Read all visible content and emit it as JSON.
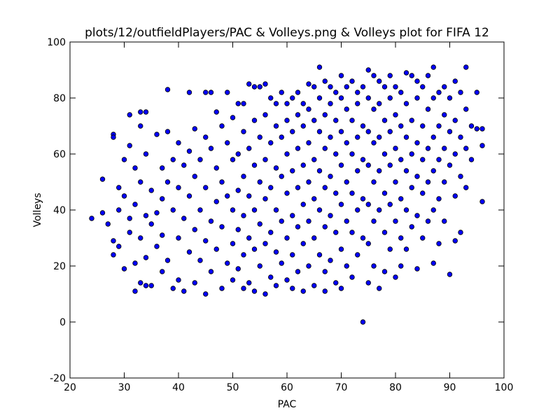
{
  "chart_data": {
    "type": "scatter",
    "title": "plots/12/outfieldPlayers/PAC & Volleys.png & Volleys plot for FIFA 12",
    "xlabel": "PAC",
    "ylabel": "Volleys",
    "color": "#0000ff",
    "xlim": [
      20,
      100
    ],
    "ylim": [
      -20,
      100
    ],
    "xticks": [
      20,
      30,
      40,
      50,
      60,
      70,
      80,
      90,
      100
    ],
    "yticks": [
      -20,
      0,
      20,
      40,
      60,
      80,
      100
    ],
    "grid": false,
    "x": [
      24,
      26,
      26,
      27,
      28,
      28,
      28,
      28,
      29,
      29,
      29,
      30,
      30,
      30,
      31,
      31,
      31,
      31,
      32,
      32,
      32,
      32,
      33,
      33,
      33,
      33,
      33,
      34,
      34,
      34,
      34,
      34,
      35,
      35,
      35,
      36,
      36,
      36,
      37,
      37,
      37,
      37,
      38,
      38,
      38,
      38,
      39,
      39,
      39,
      40,
      40,
      40,
      40,
      41,
      41,
      41,
      42,
      42,
      42,
      42,
      43,
      43,
      43,
      43,
      44,
      44,
      44,
      45,
      45,
      45,
      45,
      45,
      46,
      46,
      46,
      46,
      47,
      47,
      47,
      47,
      48,
      48,
      48,
      48,
      49,
      49,
      49,
      49,
      50,
      50,
      50,
      50,
      50,
      51,
      51,
      51,
      51,
      51,
      52,
      52,
      52,
      52,
      52,
      52,
      53,
      53,
      53,
      53,
      53,
      54,
      54,
      54,
      54,
      54,
      54,
      55,
      55,
      55,
      55,
      55,
      56,
      56,
      56,
      56,
      56,
      56,
      57,
      57,
      57,
      57,
      57,
      58,
      58,
      58,
      58,
      58,
      58,
      59,
      59,
      59,
      59,
      59,
      60,
      60,
      60,
      60,
      60,
      60,
      61,
      61,
      61,
      61,
      61,
      61,
      62,
      62,
      62,
      62,
      62,
      62,
      63,
      63,
      63,
      63,
      63,
      63,
      64,
      64,
      64,
      64,
      64,
      64,
      65,
      65,
      65,
      65,
      65,
      65,
      66,
      66,
      66,
      66,
      66,
      66,
      67,
      67,
      67,
      67,
      67,
      67,
      67,
      68,
      68,
      68,
      68,
      68,
      68,
      69,
      69,
      69,
      69,
      69,
      69,
      70,
      70,
      70,
      70,
      70,
      70,
      70,
      71,
      71,
      71,
      71,
      71,
      71,
      72,
      72,
      72,
      72,
      72,
      72,
      73,
      73,
      73,
      73,
      73,
      73,
      74,
      74,
      74,
      74,
      74,
      74,
      75,
      75,
      75,
      75,
      75,
      75,
      75,
      76,
      76,
      76,
      76,
      76,
      76,
      77,
      77,
      77,
      77,
      77,
      77,
      78,
      78,
      78,
      78,
      78,
      78,
      79,
      79,
      79,
      79,
      79,
      79,
      80,
      80,
      80,
      80,
      80,
      80,
      81,
      81,
      81,
      81,
      81,
      81,
      82,
      82,
      82,
      82,
      82,
      82,
      83,
      83,
      83,
      83,
      83,
      84,
      84,
      84,
      84,
      84,
      84,
      85,
      85,
      85,
      85,
      85,
      86,
      86,
      86,
      86,
      86,
      87,
      87,
      87,
      87,
      87,
      87,
      88,
      88,
      88,
      88,
      88,
      89,
      89,
      89,
      89,
      89,
      90,
      90,
      90,
      90,
      91,
      91,
      91,
      91,
      91,
      92,
      92,
      92,
      92,
      93,
      93,
      93,
      93,
      94,
      94,
      95,
      95,
      96,
      96,
      96
    ],
    "values": [
      37,
      51,
      39,
      35,
      67,
      66,
      29,
      24,
      48,
      40,
      27,
      58,
      45,
      19,
      74,
      63,
      37,
      32,
      55,
      42,
      11,
      21,
      75,
      70,
      50,
      30,
      14,
      75,
      60,
      38,
      23,
      13,
      47,
      35,
      13,
      67,
      39,
      27,
      55,
      44,
      31,
      18,
      83,
      68,
      50,
      22,
      58,
      40,
      12,
      64,
      48,
      30,
      15,
      56,
      37,
      11,
      82,
      61,
      45,
      25,
      69,
      52,
      33,
      14,
      58,
      40,
      22,
      82,
      66,
      48,
      29,
      10,
      82,
      62,
      36,
      18,
      75,
      55,
      43,
      26,
      70,
      50,
      34,
      12,
      82,
      64,
      45,
      21,
      73,
      58,
      40,
      28,
      15,
      78,
      60,
      47,
      33,
      19,
      78,
      68,
      52,
      38,
      24,
      12,
      85,
      62,
      45,
      30,
      14,
      84,
      72,
      56,
      40,
      26,
      11,
      84,
      66,
      50,
      35,
      20,
      85,
      74,
      58,
      44,
      28,
      10,
      80,
      64,
      48,
      32,
      16,
      78,
      70,
      55,
      40,
      25,
      13,
      82,
      66,
      52,
      36,
      21,
      78,
      72,
      60,
      46,
      30,
      15,
      80,
      68,
      54,
      38,
      24,
      12,
      82,
      74,
      62,
      48,
      34,
      18,
      78,
      70,
      56,
      42,
      28,
      11,
      85,
      76,
      64,
      50,
      36,
      20,
      84,
      72,
      58,
      44,
      30,
      13,
      91,
      80,
      68,
      54,
      40,
      24,
      86,
      74,
      62,
      48,
      34,
      18,
      11,
      84,
      78,
      66,
      52,
      38,
      22,
      82,
      72,
      60,
      46,
      32,
      14,
      88,
      80,
      68,
      56,
      42,
      26,
      12,
      84,
      76,
      64,
      50,
      36,
      20,
      86,
      72,
      60,
      46,
      32,
      16,
      82,
      78,
      66,
      54,
      40,
      24,
      84,
      70,
      58,
      44,
      30,
      0,
      90,
      80,
      68,
      56,
      42,
      28,
      14,
      88,
      76,
      64,
      50,
      36,
      20,
      86,
      78,
      66,
      54,
      40,
      12,
      84,
      72,
      60,
      46,
      32,
      18,
      88,
      80,
      68,
      56,
      42,
      26,
      84,
      74,
      62,
      50,
      36,
      16,
      82,
      70,
      58,
      44,
      30,
      20,
      89,
      78,
      66,
      54,
      40,
      26,
      88,
      72,
      60,
      48,
      34,
      86,
      80,
      64,
      52,
      38,
      19,
      84,
      70,
      58,
      46,
      30,
      88,
      76,
      62,
      50,
      36,
      91,
      80,
      66,
      54,
      40,
      21,
      82,
      70,
      58,
      44,
      28,
      84,
      74,
      62,
      50,
      36,
      80,
      68,
      56,
      17,
      86,
      72,
      60,
      45,
      29,
      82,
      66,
      52,
      32,
      91,
      76,
      62,
      48,
      70,
      58,
      82,
      69,
      69,
      63,
      43
    ]
  }
}
